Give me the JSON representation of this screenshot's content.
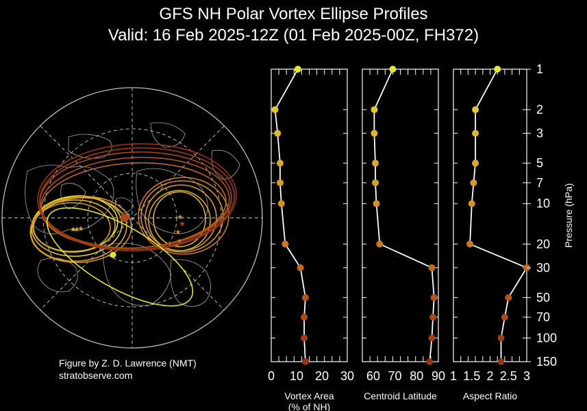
{
  "header": {
    "title": "GFS NH Polar Vortex Ellipse Profiles",
    "subtitle": "Valid: 16 Feb 2025-12Z  (01 Feb 2025-00Z, FH372)"
  },
  "credit": {
    "line1": "Figure by Z. D. Lawrence (NMT)",
    "line2": "stratobserve.com"
  },
  "chart_data": [
    {
      "type": "line",
      "panel": "vortex-area",
      "xlabel": "Vortex Area\n(% of NH)",
      "xlim": [
        0,
        30
      ],
      "xticks": [
        0,
        10,
        20,
        30
      ],
      "ylim_log": [
        150,
        1
      ],
      "y": [
        1,
        2,
        3,
        5,
        7,
        10,
        20,
        30,
        50,
        70,
        100,
        150
      ],
      "series": [
        {
          "values": [
            10.5,
            1.5,
            2.5,
            3.5,
            3.5,
            4.0,
            5.5,
            11.5,
            13.5,
            13.0,
            13.0,
            13.5
          ]
        }
      ]
    },
    {
      "type": "line",
      "panel": "centroid-latitude",
      "xlabel": "Centroid Latitude",
      "xlim": [
        55,
        90
      ],
      "xticks": [
        60,
        70,
        80,
        90
      ],
      "ylim_log": [
        150,
        1
      ],
      "y": [
        1,
        2,
        3,
        5,
        7,
        10,
        20,
        30,
        50,
        70,
        100,
        150
      ],
      "series": [
        {
          "values": [
            69,
            60.5,
            60.5,
            61,
            61,
            61.5,
            63,
            87,
            88,
            87.5,
            87,
            86
          ]
        }
      ]
    },
    {
      "type": "line",
      "panel": "aspect-ratio",
      "xlabel": "Aspect Ratio",
      "xlim": [
        1,
        3
      ],
      "xticks": [
        1,
        1.5,
        2,
        2.5,
        3
      ],
      "ylim_log": [
        150,
        1
      ],
      "y": [
        1,
        2,
        3,
        5,
        7,
        10,
        20,
        30,
        50,
        70,
        100,
        150
      ],
      "ylabel": "Pressure (hPa)",
      "yticklabels": [
        "1",
        "2",
        "3",
        "5",
        "7",
        "10",
        "20",
        "30",
        "50",
        "70",
        "100",
        "150"
      ],
      "series": [
        {
          "values": [
            2.2,
            1.6,
            1.6,
            1.6,
            1.55,
            1.5,
            1.45,
            3.0,
            2.5,
            2.4,
            2.3,
            2.3
          ]
        }
      ]
    }
  ],
  "colors": {
    "background": "#000000",
    "level_colors": [
      "#e8e82a",
      "#e2c72a",
      "#dfb82a",
      "#dba82a",
      "#d69d26",
      "#d29226",
      "#c97a20",
      "#bf6a1c",
      "#b25618",
      "#a94a17",
      "#a03c16",
      "#983316"
    ],
    "map_lines": "#bdbdbd"
  }
}
